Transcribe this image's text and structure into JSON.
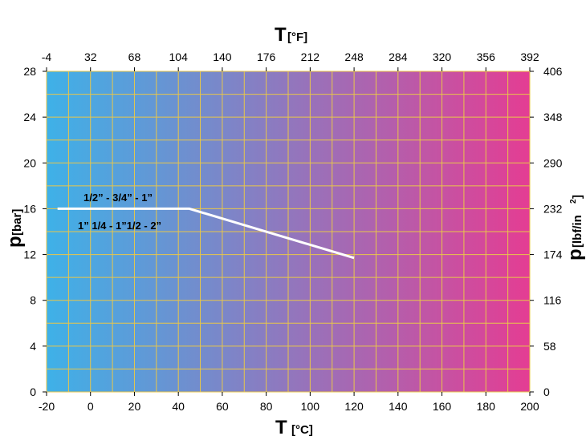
{
  "chart_data": {
    "type": "line",
    "x_bottom": {
      "title_main": "T",
      "title_unit": "[°C]",
      "range": [
        -20,
        200
      ],
      "ticks": [
        "-20",
        "0",
        "20",
        "40",
        "60",
        "80",
        "100",
        "120",
        "140",
        "160",
        "180",
        "200"
      ]
    },
    "x_top": {
      "title_main": "T",
      "title_unit": "[°F]",
      "range": [
        -4,
        392
      ],
      "ticks": [
        "-4",
        "32",
        "68",
        "104",
        "140",
        "176",
        "212",
        "248",
        "284",
        "320",
        "356",
        "392"
      ]
    },
    "y_left": {
      "title_main": "p",
      "title_unit": "[bar]",
      "range": [
        0,
        28
      ],
      "ticks": [
        "0",
        "4",
        "8",
        "12",
        "16",
        "20",
        "24",
        "28"
      ]
    },
    "y_right": {
      "title_main": "p",
      "title_unit": "[lbf/in",
      "title_sup": "2",
      "title_close": "]",
      "range": [
        0,
        406
      ],
      "ticks": [
        "0",
        "58",
        "116",
        "174",
        "232",
        "290",
        "348",
        "406"
      ]
    },
    "grid": true,
    "background_gradient": [
      "#3eb1e8",
      "#e43d93"
    ],
    "grid_color": "#e8c64a",
    "series": [
      {
        "color": "#ffffff",
        "x": [
          -15,
          45,
          120
        ],
        "y": [
          16,
          16,
          11.7
        ]
      }
    ],
    "annotations": [
      "1/2” - 3/4” - 1”",
      "1” 1/4 - 1”1/2 - 2”"
    ]
  }
}
